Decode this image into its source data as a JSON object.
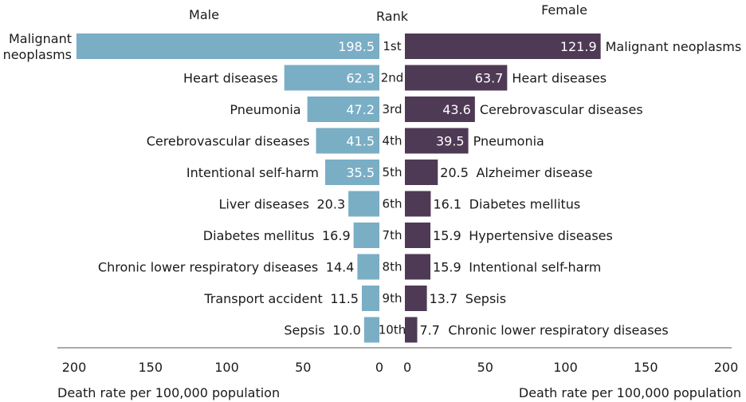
{
  "chart_data": {
    "type": "bar",
    "layout": "population-pyramid",
    "rank_title": "Rank",
    "ranks": [
      "1st",
      "2nd",
      "3rd",
      "4th",
      "5th",
      "6th",
      "7th",
      "8th",
      "9th",
      "10th"
    ],
    "xlim": [
      0,
      200
    ],
    "ticks": [
      0,
      50,
      100,
      150,
      200
    ],
    "tick_labels_left": [
      "0",
      "50",
      "100",
      "150",
      "200"
    ],
    "tick_labels_right": [
      "0",
      "50",
      "100",
      "150",
      "200"
    ],
    "male": {
      "title": "Male",
      "color": "#7aaec5",
      "xlabel": "Death rate per 100,000 population",
      "categories": [
        [
          "Malignant",
          "neoplasms"
        ],
        [
          "Heart diseases"
        ],
        [
          "Pneumonia"
        ],
        [
          "Cerebrovascular diseases"
        ],
        [
          "Intentional self-harm"
        ],
        [
          "Liver diseases"
        ],
        [
          "Diabetes mellitus"
        ],
        [
          "Chronic lower respiratory diseases"
        ],
        [
          "Transport accident"
        ],
        [
          "Sepsis"
        ]
      ],
      "values": [
        198.5,
        62.3,
        47.2,
        41.5,
        35.5,
        20.3,
        16.9,
        14.4,
        11.5,
        10.0
      ],
      "value_labels": [
        "198.5",
        "62.3",
        "47.2",
        "41.5",
        "35.5",
        "20.3",
        "16.9",
        "14.4",
        "11.5",
        "10.0"
      ]
    },
    "female": {
      "title": "Female",
      "color": "#4f3a55",
      "xlabel": "Death rate per 100,000 population",
      "categories": [
        [
          "Malignant neoplasms"
        ],
        [
          "Heart diseases"
        ],
        [
          "Cerebrovascular diseases"
        ],
        [
          "Pneumonia"
        ],
        [
          "Alzheimer disease"
        ],
        [
          "Diabetes mellitus"
        ],
        [
          "Hypertensive diseases"
        ],
        [
          "Intentional self-harm"
        ],
        [
          "Sepsis"
        ],
        [
          "Chronic lower respiratory diseases"
        ]
      ],
      "values": [
        121.9,
        63.7,
        43.6,
        39.5,
        20.5,
        16.1,
        15.9,
        15.9,
        13.7,
        7.7
      ],
      "value_labels": [
        "121.9",
        "63.7",
        "43.6",
        "39.5",
        "20.5",
        "16.1",
        "15.9",
        "15.9",
        "13.7",
        "7.7"
      ]
    }
  }
}
